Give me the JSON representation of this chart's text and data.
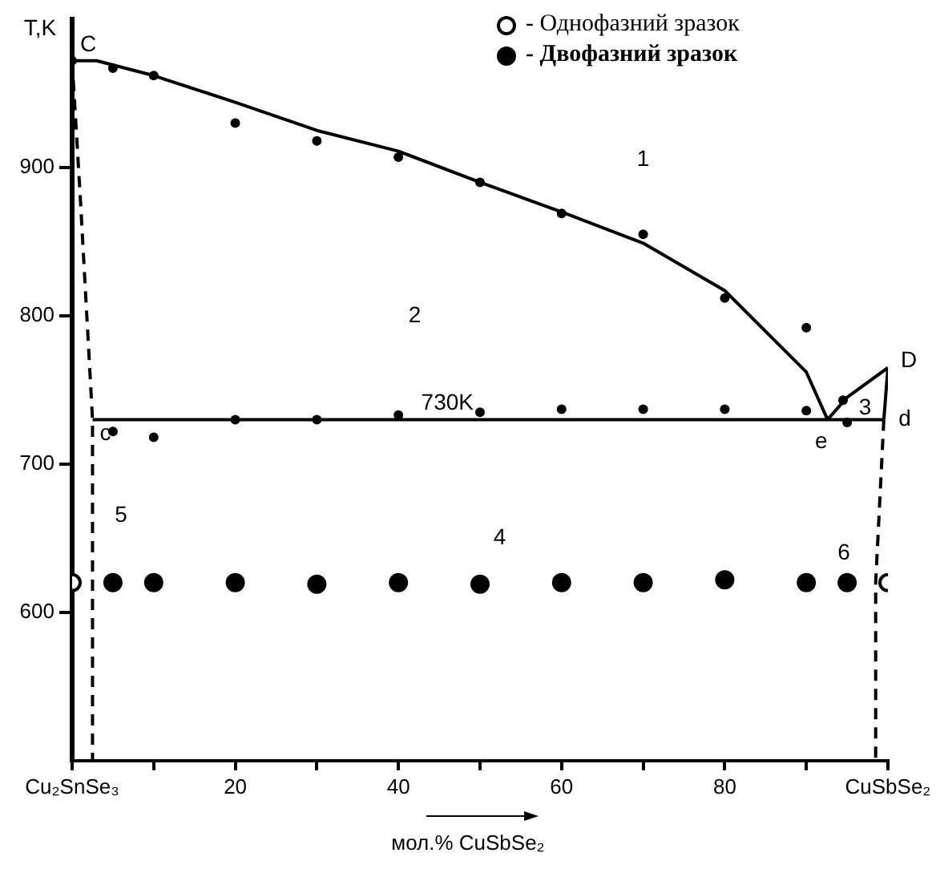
{
  "chart_data": {
    "type": "scatter",
    "xlabel": "мол.% CuSbSe₂",
    "ylabel": "T,K",
    "xlim": [
      0,
      100
    ],
    "ylim": [
      500,
      1000
    ],
    "xticks": [
      {
        "value": 0,
        "label": "Cu₂SnSe₃"
      },
      {
        "value": 10,
        "label": null
      },
      20,
      {
        "value": 30,
        "label": null
      },
      40,
      {
        "value": 50,
        "label": null
      },
      60,
      {
        "value": 70,
        "label": null
      },
      80,
      {
        "value": 90,
        "label": null
      },
      {
        "value": 100,
        "label": "CuSbSe₂"
      }
    ],
    "yticks": [
      600,
      700,
      800,
      900
    ],
    "grid": false,
    "legend": "top",
    "marker": "circle",
    "series": [
      {
        "type": "scatter",
        "color": "#000000",
        "x": [
          0,
          5,
          10,
          20,
          30,
          40,
          50,
          60,
          70,
          80,
          90,
          94.5,
          5,
          10,
          20,
          30,
          40,
          50,
          60,
          70,
          80,
          90,
          95
        ],
        "values": [
          972,
          967,
          962,
          930,
          918,
          907,
          890,
          869,
          855,
          812,
          792,
          743,
          722,
          718,
          730,
          730,
          733,
          735,
          737,
          737,
          737,
          736,
          728
        ]
      },
      {
        "type": "scatter",
        "name": "- Однофазний зразок",
        "color": "#ffffff",
        "x": [
          0,
          100
        ],
        "values": [
          620,
          620
        ]
      },
      {
        "type": "scatter",
        "name": "- Двофазний зразок",
        "color": "#000000",
        "x": [
          5,
          10,
          20,
          30,
          40,
          50,
          60,
          70,
          80,
          90,
          95
        ],
        "values": [
          620,
          620,
          620,
          619,
          620,
          619,
          620,
          620,
          622,
          620,
          620
        ]
      },
      {
        "type": "line",
        "marker": "none",
        "color": "#000000",
        "x": [
          0,
          3,
          10,
          20,
          30,
          40,
          50,
          60,
          70,
          80,
          90,
          92.6
        ],
        "values": [
          972,
          972,
          962,
          944,
          925,
          911,
          890,
          870,
          849,
          817,
          762,
          730
        ]
      },
      {
        "type": "line",
        "marker": "none",
        "color": "#000000",
        "x": [
          92.6,
          95,
          100
        ],
        "values": [
          730,
          745,
          765
        ]
      },
      {
        "type": "line",
        "marker": "none",
        "color": "#000000",
        "x": [
          2.5,
          99.5
        ],
        "values": [
          730,
          730
        ]
      },
      {
        "type": "line",
        "marker": "none",
        "color": "#000000",
        "x": [
          100,
          99.5
        ],
        "values": [
          765,
          730
        ]
      },
      {
        "type": "line",
        "marker": "none",
        "color": "#000000",
        "line_style": "dashed",
        "x": [
          0,
          1,
          2.5,
          2.5
        ],
        "values": [
          972,
          880,
          730,
          500
        ]
      },
      {
        "type": "line",
        "marker": "none",
        "color": "#000000",
        "line_style": "dashed",
        "x": [
          99.5,
          98.5,
          98.5
        ],
        "values": [
          730,
          620,
          500
        ]
      }
    ],
    "annotations": [
      {
        "text": "C",
        "x": 0,
        "y": 972
      },
      "1",
      "2",
      {
        "text": "730K",
        "x": 46,
        "y": 730
      },
      {
        "text": "c",
        "x": 2.5,
        "y": 730
      },
      {
        "text": "e",
        "x": 92.6,
        "y": 730
      },
      {
        "text": "D",
        "x": 100,
        "y": 765
      },
      "3",
      {
        "text": "d",
        "x": 99.5,
        "y": 730
      },
      "4",
      "5",
      "6"
    ]
  }
}
